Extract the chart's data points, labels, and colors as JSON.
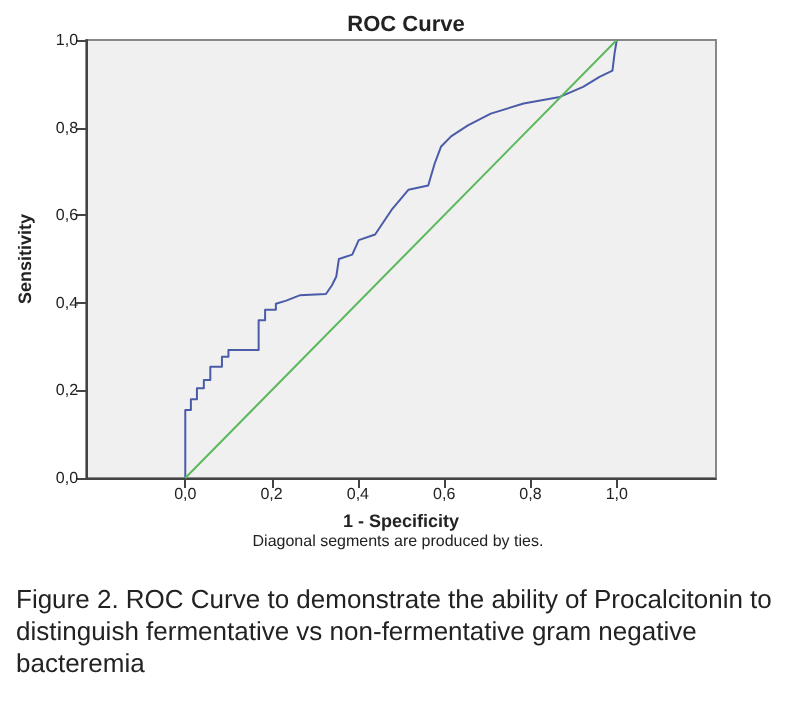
{
  "chart_data": {
    "type": "line",
    "title": "ROC Curve",
    "xlabel": "1 - Specificity",
    "ylabel": "Sensitivity",
    "annotations": [
      "Diagonal segments are produced by ties.",
      "Figure 2. ROC Curve to demonstrate the ability of Procalcitonin to distinguish fermentative vs non-fermentative gram negative bacteremia"
    ],
    "xlim": [
      -0.23,
      1.23
    ],
    "ylim": [
      0,
      1
    ],
    "xticks": [
      {
        "value": 0,
        "label": "0,0"
      },
      {
        "value": 0.2,
        "label": "0,2"
      },
      {
        "value": 0.4,
        "label": "0,4"
      },
      {
        "value": 0.6,
        "label": "0,6"
      },
      {
        "value": 0.8,
        "label": "0,8"
      },
      {
        "value": 1,
        "label": "1,0"
      }
    ],
    "yticks": [
      {
        "value": 0,
        "label": "0,0"
      },
      {
        "value": 0.2,
        "label": "0,2"
      },
      {
        "value": 0.4,
        "label": "0,4"
      },
      {
        "value": 0.6,
        "label": "0,6"
      },
      {
        "value": 0.8,
        "label": "0,8"
      },
      {
        "value": 1,
        "label": "1,0"
      }
    ],
    "grid": false,
    "marker": "none",
    "line_style": "solid",
    "series": [
      {
        "color": "#4a5ca8",
        "x": [
          0,
          0,
          0.013,
          0.013,
          0.027,
          0.027,
          0.043,
          0.043,
          0.058,
          0.058,
          0.085,
          0.085,
          0.1,
          0.1,
          0.17,
          0.17,
          0.185,
          0.185,
          0.21,
          0.21,
          0.234,
          0.265,
          0.326,
          0.34,
          0.35,
          0.356,
          0.387,
          0.402,
          0.44,
          0.478,
          0.517,
          0.563,
          0.578,
          0.593,
          0.616,
          0.655,
          0.708,
          0.784,
          0.868,
          0.922,
          0.96,
          0.99,
          0.995,
          1
        ],
        "values": [
          0,
          0.155,
          0.155,
          0.18,
          0.18,
          0.205,
          0.205,
          0.224,
          0.224,
          0.254,
          0.254,
          0.277,
          0.277,
          0.292,
          0.292,
          0.36,
          0.36,
          0.384,
          0.384,
          0.398,
          0.405,
          0.417,
          0.42,
          0.44,
          0.46,
          0.5,
          0.51,
          0.543,
          0.556,
          0.612,
          0.658,
          0.668,
          0.718,
          0.757,
          0.78,
          0.805,
          0.832,
          0.855,
          0.87,
          0.893,
          0.916,
          0.93,
          0.97,
          1
        ]
      },
      {
        "color": "#5cb85c",
        "x": [
          0,
          1
        ],
        "values": [
          0,
          1
        ]
      }
    ]
  }
}
